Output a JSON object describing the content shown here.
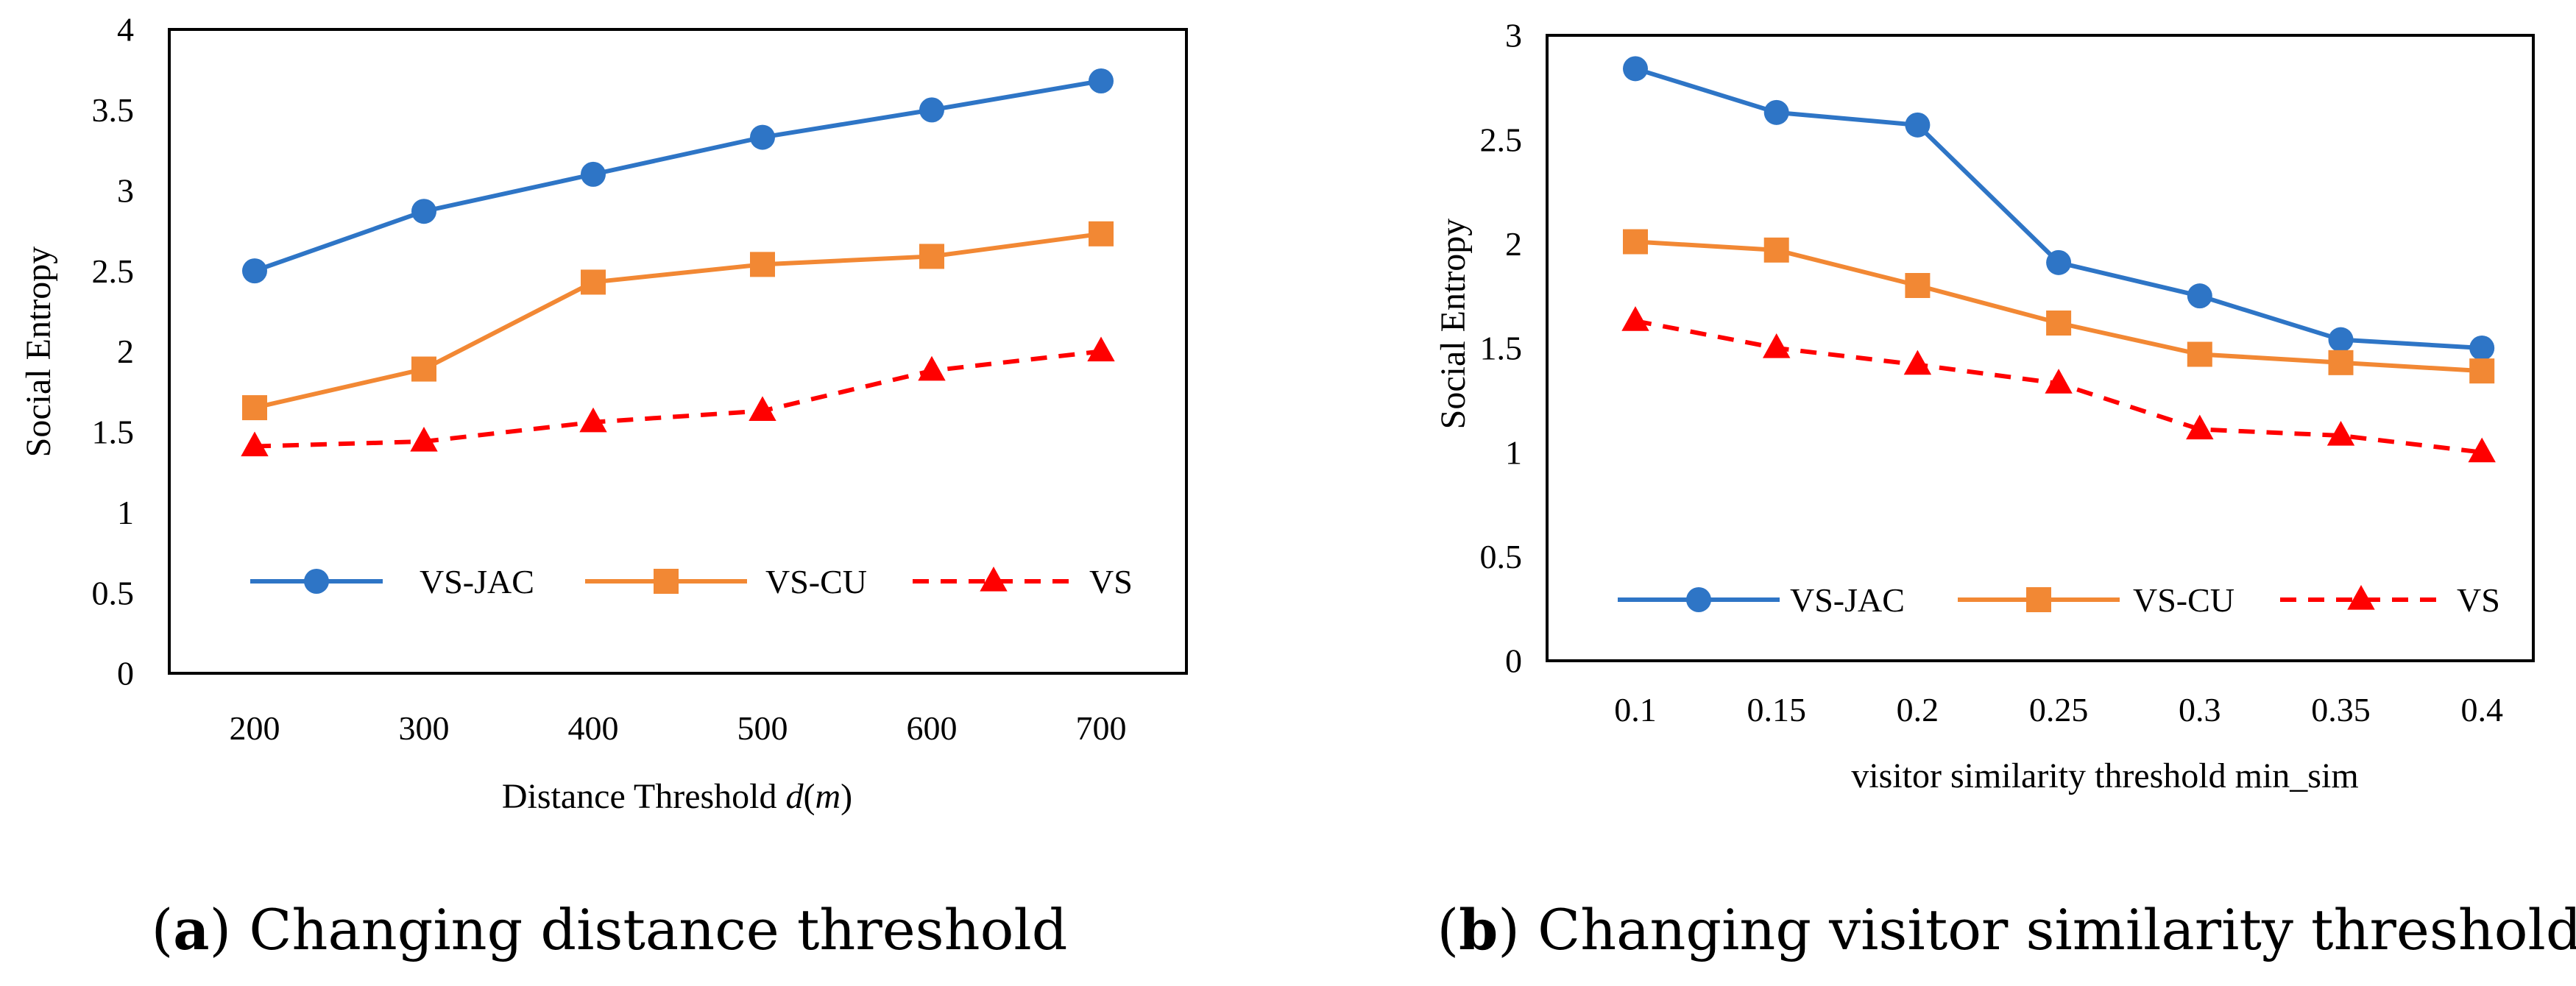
{
  "chart_data": [
    {
      "type": "line",
      "panel": "a",
      "categories": [
        "200",
        "300",
        "400",
        "500",
        "600",
        "700"
      ],
      "series": [
        {
          "name": "VS-JAC",
          "values": [
            2.5,
            2.87,
            3.1,
            3.33,
            3.5,
            3.68
          ],
          "color": "#2E75C6",
          "marker": "circle",
          "dashed": false
        },
        {
          "name": "VS-CU",
          "values": [
            1.65,
            1.89,
            2.43,
            2.54,
            2.59,
            2.73
          ],
          "color": "#F28834",
          "marker": "square",
          "dashed": false
        },
        {
          "name": "VS",
          "values": [
            1.41,
            1.44,
            1.56,
            1.63,
            1.88,
            2.0
          ],
          "color": "#FF0000",
          "marker": "triangle",
          "dashed": true
        }
      ],
      "xlabel_prefix": "Distance Threshold ",
      "xlabel_var": "d",
      "xlabel_paren_open": "(",
      "xlabel_unit": "m",
      "xlabel_paren_close": ")",
      "ylabel": "Social Entropy",
      "ylim": [
        0,
        4
      ],
      "yticks": [
        "0",
        "0.5",
        "1",
        "1.5",
        "2",
        "2.5",
        "3",
        "3.5",
        "4"
      ],
      "grid": false,
      "legend_placement": "bottom-inside"
    },
    {
      "type": "line",
      "panel": "b",
      "categories": [
        "0.1",
        "0.15",
        "0.2",
        "0.25",
        "0.3",
        "0.35",
        "0.4"
      ],
      "series": [
        {
          "name": "VS-JAC",
          "values": [
            2.84,
            2.63,
            2.57,
            1.91,
            1.75,
            1.54,
            1.5
          ],
          "color": "#2E75C6",
          "marker": "circle",
          "dashed": false
        },
        {
          "name": "VS-CU",
          "values": [
            2.01,
            1.97,
            1.8,
            1.62,
            1.47,
            1.43,
            1.39
          ],
          "color": "#F28834",
          "marker": "square",
          "dashed": false
        },
        {
          "name": "VS",
          "values": [
            1.63,
            1.5,
            1.42,
            1.33,
            1.11,
            1.08,
            1.0
          ],
          "color": "#FF0000",
          "marker": "triangle",
          "dashed": true
        }
      ],
      "xlabel": "visitor similarity threshold min_sim",
      "ylabel": "Social Entropy",
      "ylim": [
        0,
        3
      ],
      "yticks": [
        "0",
        "0.5",
        "1",
        "1.5",
        "2",
        "2.5",
        "3"
      ],
      "grid": false,
      "legend_placement": "bottom-inside"
    }
  ],
  "captions": {
    "a": {
      "open": "(",
      "letter": "a",
      "close": ")",
      "text": " Changing distance threshold"
    },
    "b": {
      "open": "(",
      "letter": "b",
      "close": ")",
      "text": " Changing visitor similarity threshold"
    }
  }
}
